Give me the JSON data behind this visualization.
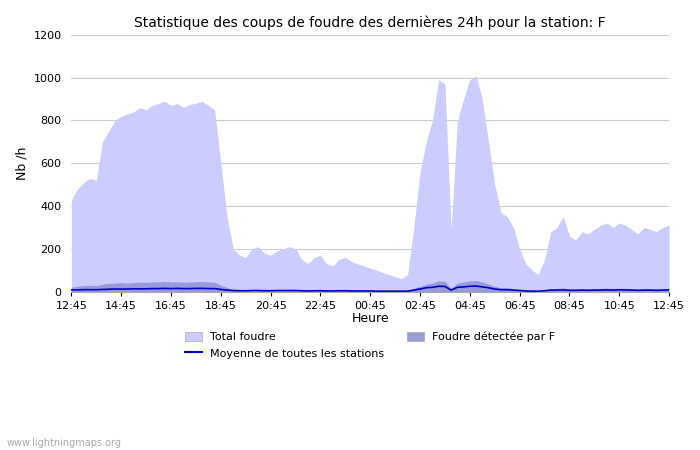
{
  "title": "Statistique des coups de foudre des dernières 24h pour la station: F",
  "ylabel": "Nb /h",
  "xlabel": "Heure",
  "watermark": "www.lightningmaps.org",
  "ylim": [
    0,
    1200
  ],
  "yticks": [
    0,
    200,
    400,
    600,
    800,
    1000,
    1200
  ],
  "xtick_labels": [
    "12:45",
    "14:45",
    "16:45",
    "18:45",
    "20:45",
    "22:45",
    "00:45",
    "02:45",
    "04:45",
    "06:45",
    "08:45",
    "10:45",
    "12:45"
  ],
  "legend_labels": [
    "Total foudre",
    "Foudre étectée par F",
    "Moyenne de toutes les stations"
  ],
  "fill_color_total": "#ccccff",
  "fill_color_detected": "#9999dd",
  "line_color_mean": "#0000cc",
  "background_color": "#ffffff",
  "grid_color": "#cccccc",
  "time_hours": [
    12.75,
    13.0,
    13.25,
    13.5,
    13.75,
    14.0,
    14.25,
    14.5,
    14.75,
    15.0,
    15.25,
    15.5,
    15.75,
    16.0,
    16.25,
    16.5,
    16.75,
    17.0,
    17.25,
    17.5,
    17.75,
    18.0,
    18.25,
    18.5,
    18.75,
    19.0,
    19.25,
    19.5,
    19.75,
    20.0,
    20.25,
    20.5,
    20.75,
    21.0,
    21.25,
    21.5,
    21.75,
    22.0,
    22.25,
    22.5,
    22.75,
    23.0,
    23.25,
    23.5,
    23.75,
    24.0,
    24.25,
    24.5,
    24.75,
    25.0,
    25.25,
    25.5,
    25.75,
    26.0,
    26.25,
    26.5,
    26.75,
    27.0,
    27.25,
    27.5,
    27.75,
    28.0,
    28.25,
    28.5,
    28.75,
    29.0,
    29.25,
    29.5,
    29.75,
    30.0,
    30.25,
    30.5,
    30.75,
    31.0,
    31.25,
    31.5,
    31.75,
    32.0,
    32.25,
    32.5,
    32.75,
    33.0,
    33.25,
    33.5,
    33.75,
    34.0,
    34.25,
    34.5,
    34.75,
    35.0,
    35.25,
    35.5,
    35.75,
    36.0,
    36.25,
    36.5,
    36.75
  ],
  "total_values": [
    430,
    480,
    510,
    530,
    520,
    700,
    750,
    800,
    820,
    830,
    840,
    860,
    850,
    870,
    880,
    890,
    870,
    880,
    860,
    875,
    880,
    890,
    870,
    850,
    600,
    350,
    200,
    170,
    160,
    200,
    210,
    180,
    170,
    190,
    200,
    210,
    200,
    150,
    130,
    160,
    170,
    130,
    120,
    150,
    160,
    140,
    130,
    120,
    110,
    100,
    90,
    80,
    70,
    60,
    80,
    300,
    560,
    700,
    800,
    990,
    970,
    290,
    800,
    900,
    990,
    1010,
    900,
    700,
    500,
    370,
    350,
    300,
    200,
    130,
    100,
    80,
    150,
    280,
    300,
    350,
    260,
    240,
    280,
    270,
    290,
    310,
    320,
    300,
    320,
    310,
    290,
    270,
    300,
    290,
    280,
    300,
    310
  ],
  "detected_values": [
    20,
    25,
    28,
    30,
    28,
    35,
    38,
    40,
    42,
    40,
    42,
    44,
    43,
    45,
    46,
    47,
    45,
    46,
    44,
    45,
    46,
    47,
    45,
    44,
    30,
    20,
    10,
    8,
    8,
    10,
    11,
    9,
    8,
    10,
    10,
    11,
    10,
    8,
    7,
    8,
    9,
    7,
    6,
    8,
    8,
    7,
    6,
    6,
    5,
    5,
    4,
    4,
    3,
    3,
    4,
    15,
    25,
    35,
    40,
    50,
    48,
    15,
    40,
    45,
    50,
    52,
    45,
    35,
    25,
    18,
    18,
    15,
    10,
    6,
    5,
    4,
    8,
    14,
    15,
    17,
    13,
    12,
    14,
    13,
    14,
    15,
    16,
    15,
    16,
    15,
    14,
    13,
    15,
    14,
    13,
    15,
    16
  ],
  "mean_values": [
    8,
    8,
    9,
    9,
    9,
    10,
    11,
    12,
    12,
    12,
    13,
    13,
    13,
    14,
    14,
    15,
    14,
    15,
    14,
    14,
    15,
    15,
    14,
    14,
    10,
    7,
    5,
    4,
    4,
    5,
    5,
    4,
    4,
    5,
    5,
    5,
    5,
    4,
    3,
    4,
    4,
    3,
    3,
    4,
    4,
    3,
    3,
    3,
    3,
    2,
    2,
    2,
    2,
    2,
    2,
    7,
    12,
    18,
    20,
    25,
    24,
    7,
    20,
    22,
    25,
    26,
    22,
    18,
    12,
    9,
    9,
    7,
    5,
    3,
    2,
    2,
    4,
    7,
    7,
    8,
    6,
    6,
    7,
    6,
    7,
    7,
    8,
    7,
    8,
    8,
    7,
    6,
    7,
    7,
    6,
    7,
    8
  ]
}
